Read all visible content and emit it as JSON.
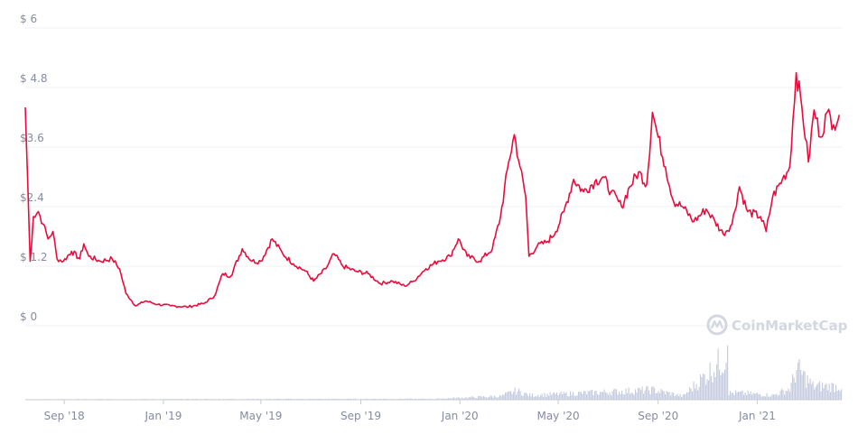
{
  "chart_data": {
    "type": "line",
    "title": "",
    "xlabel": "",
    "ylabel": "",
    "y_ticks": [
      {
        "value": 0,
        "label": "$ 0"
      },
      {
        "value": 1.2,
        "label": "$ 1.2"
      },
      {
        "value": 2.4,
        "label": "$2.4"
      },
      {
        "value": 3.6,
        "label": "$3.6"
      },
      {
        "value": 4.8,
        "label": "$ 4.8"
      },
      {
        "value": 6,
        "label": "$ 6"
      }
    ],
    "ylim": [
      0,
      6
    ],
    "xlim": [
      "2018-07-15",
      "2021-04-15"
    ],
    "x_ticks": [
      {
        "date": "2018-09-01",
        "label": "Sep '18"
      },
      {
        "date": "2019-01-01",
        "label": "Jan '19"
      },
      {
        "date": "2019-05-01",
        "label": "May '19"
      },
      {
        "date": "2019-09-01",
        "label": "Sep '19"
      },
      {
        "date": "2020-01-01",
        "label": "Jan '20"
      },
      {
        "date": "2020-05-01",
        "label": "May '20"
      },
      {
        "date": "2020-09-01",
        "label": "Sep '20"
      },
      {
        "date": "2021-01-01",
        "label": "Jan '21"
      }
    ],
    "grid": true,
    "line_color": "#ea0b3c",
    "volume_color": "#c7cde0",
    "watermark": "CoinMarketCap",
    "series": [
      {
        "points": [
          [
            "2018-07-15",
            4.4
          ],
          [
            "2018-07-18",
            2.9
          ],
          [
            "2018-07-21",
            1.3
          ],
          [
            "2018-07-25",
            2.2
          ],
          [
            "2018-07-31",
            2.3
          ],
          [
            "2018-08-06",
            2.05
          ],
          [
            "2018-08-12",
            1.75
          ],
          [
            "2018-08-18",
            1.9
          ],
          [
            "2018-08-23",
            1.35
          ],
          [
            "2018-08-31",
            1.3
          ],
          [
            "2018-09-10",
            1.5
          ],
          [
            "2018-09-20",
            1.35
          ],
          [
            "2018-09-25",
            1.65
          ],
          [
            "2018-10-01",
            1.4
          ],
          [
            "2018-10-15",
            1.3
          ],
          [
            "2018-10-30",
            1.35
          ],
          [
            "2018-11-08",
            1.15
          ],
          [
            "2018-11-16",
            0.65
          ],
          [
            "2018-11-28",
            0.4
          ],
          [
            "2018-12-10",
            0.5
          ],
          [
            "2018-12-25",
            0.43
          ],
          [
            "2019-01-10",
            0.4
          ],
          [
            "2019-02-01",
            0.38
          ],
          [
            "2019-02-20",
            0.45
          ],
          [
            "2019-03-05",
            0.6
          ],
          [
            "2019-03-15",
            1.05
          ],
          [
            "2019-03-25",
            1.0
          ],
          [
            "2019-04-08",
            1.55
          ],
          [
            "2019-04-20",
            1.3
          ],
          [
            "2019-05-01",
            1.3
          ],
          [
            "2019-05-15",
            1.75
          ],
          [
            "2019-05-28",
            1.45
          ],
          [
            "2019-06-10",
            1.25
          ],
          [
            "2019-06-25",
            1.1
          ],
          [
            "2019-07-05",
            0.9
          ],
          [
            "2019-07-20",
            1.15
          ],
          [
            "2019-07-30",
            1.45
          ],
          [
            "2019-08-10",
            1.2
          ],
          [
            "2019-08-25",
            1.1
          ],
          [
            "2019-09-10",
            1.05
          ],
          [
            "2019-09-25",
            0.85
          ],
          [
            "2019-10-10",
            0.9
          ],
          [
            "2019-10-25",
            0.8
          ],
          [
            "2019-11-05",
            0.9
          ],
          [
            "2019-11-20",
            1.15
          ],
          [
            "2019-12-05",
            1.3
          ],
          [
            "2019-12-20",
            1.4
          ],
          [
            "2019-12-30",
            1.75
          ],
          [
            "2020-01-10",
            1.4
          ],
          [
            "2020-01-25",
            1.3
          ],
          [
            "2020-02-10",
            1.55
          ],
          [
            "2020-02-20",
            2.2
          ],
          [
            "2020-03-01",
            3.3
          ],
          [
            "2020-03-08",
            3.85
          ],
          [
            "2020-03-15",
            3.2
          ],
          [
            "2020-03-22",
            2.6
          ],
          [
            "2020-03-26",
            1.4
          ],
          [
            "2020-04-05",
            1.6
          ],
          [
            "2020-04-18",
            1.7
          ],
          [
            "2020-04-28",
            1.9
          ],
          [
            "2020-05-08",
            2.3
          ],
          [
            "2020-05-20",
            2.95
          ],
          [
            "2020-06-01",
            2.7
          ],
          [
            "2020-06-15",
            2.9
          ],
          [
            "2020-06-25",
            3.0
          ],
          [
            "2020-07-05",
            2.7
          ],
          [
            "2020-07-18",
            2.4
          ],
          [
            "2020-07-28",
            2.8
          ],
          [
            "2020-08-08",
            3.1
          ],
          [
            "2020-08-18",
            2.85
          ],
          [
            "2020-08-25",
            4.3
          ],
          [
            "2020-09-01",
            3.8
          ],
          [
            "2020-09-10",
            3.2
          ],
          [
            "2020-09-20",
            2.5
          ],
          [
            "2020-10-01",
            2.4
          ],
          [
            "2020-10-15",
            2.1
          ],
          [
            "2020-10-30",
            2.35
          ],
          [
            "2020-11-10",
            2.1
          ],
          [
            "2020-11-20",
            1.85
          ],
          [
            "2020-12-01",
            2.05
          ],
          [
            "2020-12-10",
            2.8
          ],
          [
            "2020-12-20",
            2.3
          ],
          [
            "2021-01-05",
            2.2
          ],
          [
            "2021-01-12",
            1.9
          ],
          [
            "2021-01-20",
            2.6
          ],
          [
            "2021-02-01",
            2.95
          ],
          [
            "2021-02-10",
            3.2
          ],
          [
            "2021-02-18",
            5.1
          ],
          [
            "2021-02-25",
            4.4
          ],
          [
            "2021-03-05",
            3.3
          ],
          [
            "2021-03-12",
            4.35
          ],
          [
            "2021-03-20",
            3.8
          ],
          [
            "2021-03-28",
            4.3
          ],
          [
            "2021-04-05",
            4.05
          ],
          [
            "2021-04-12",
            4.25
          ]
        ]
      }
    ],
    "volume": [
      [
        "2018-07-15",
        0.01
      ],
      [
        "2019-12-01",
        0.02
      ],
      [
        "2020-02-20",
        0.08
      ],
      [
        "2020-03-10",
        0.2
      ],
      [
        "2020-03-26",
        0.1
      ],
      [
        "2020-05-20",
        0.14
      ],
      [
        "2020-08-25",
        0.22
      ],
      [
        "2020-10-01",
        0.08
      ],
      [
        "2020-11-25",
        1.0
      ],
      [
        "2020-12-10",
        0.15
      ],
      [
        "2021-01-20",
        0.1
      ],
      [
        "2021-02-10",
        0.25
      ],
      [
        "2021-02-18",
        0.7
      ],
      [
        "2021-03-10",
        0.3
      ],
      [
        "2021-04-12",
        0.3
      ]
    ]
  }
}
